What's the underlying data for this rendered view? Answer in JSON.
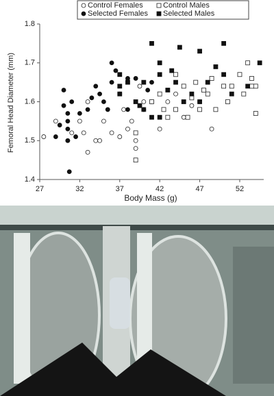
{
  "chart_data": {
    "type": "scatter",
    "xlabel": "Body Mass (g)",
    "ylabel": "Femoral Head Diameter (mm)",
    "xlim": [
      27,
      55
    ],
    "xticks": [
      27,
      32,
      37,
      42,
      47,
      52
    ],
    "ylim": [
      1.4,
      1.8
    ],
    "yticks": [
      1.4,
      1.5,
      1.6,
      1.7,
      1.8
    ],
    "series": [
      {
        "name": "Control Females",
        "marker": "circle",
        "filled": false,
        "color": "#222",
        "x": [
          27.5,
          29,
          30.5,
          31,
          32,
          32.5,
          33,
          34,
          34.5,
          35,
          36,
          37,
          37.5,
          38,
          38.5,
          39,
          39,
          39.5,
          40,
          41,
          42,
          43,
          44,
          45,
          46,
          47,
          48.5,
          35.5,
          33
        ],
        "y": [
          1.51,
          1.55,
          1.5,
          1.52,
          1.55,
          1.52,
          1.47,
          1.5,
          1.5,
          1.55,
          1.52,
          1.51,
          1.58,
          1.53,
          1.55,
          1.5,
          1.48,
          1.64,
          1.6,
          1.6,
          1.53,
          1.6,
          1.62,
          1.56,
          1.59,
          1.6,
          1.53,
          1.58,
          1.6
        ]
      },
      {
        "name": "Control Males",
        "marker": "square",
        "filled": false,
        "color": "#222",
        "x": [
          39,
          39,
          40,
          41,
          42,
          42.5,
          43,
          44,
          44,
          45,
          45.5,
          46,
          46.5,
          47,
          47.5,
          48,
          48.5,
          49,
          50,
          50.5,
          51,
          52,
          52.5,
          53,
          53.5,
          53.5,
          54,
          54
        ],
        "y": [
          1.45,
          1.52,
          1.58,
          1.6,
          1.62,
          1.58,
          1.56,
          1.58,
          1.67,
          1.64,
          1.56,
          1.61,
          1.65,
          1.58,
          1.63,
          1.62,
          1.66,
          1.58,
          1.64,
          1.6,
          1.64,
          1.67,
          1.62,
          1.7,
          1.66,
          1.64,
          1.57,
          1.64
        ]
      },
      {
        "name": "Selected Females",
        "marker": "circle",
        "filled": true,
        "color": "#111",
        "x": [
          29,
          30,
          30.5,
          30.5,
          30.5,
          30.5,
          30.7,
          31,
          31.5,
          32,
          33,
          33.5,
          34,
          34.5,
          35,
          35.5,
          36,
          36,
          36.5,
          37,
          38,
          38,
          39,
          40,
          40.5,
          41,
          29.5,
          30
        ],
        "y": [
          1.51,
          1.59,
          1.57,
          1.55,
          1.53,
          1.5,
          1.42,
          1.6,
          1.51,
          1.57,
          1.58,
          1.61,
          1.64,
          1.62,
          1.6,
          1.58,
          1.7,
          1.65,
          1.68,
          1.62,
          1.66,
          1.58,
          1.66,
          1.58,
          1.63,
          1.65,
          1.54,
          1.63
        ]
      },
      {
        "name": "Selected Males",
        "marker": "square",
        "filled": true,
        "color": "#111",
        "x": [
          37,
          37,
          38,
          39,
          40,
          41,
          41,
          42,
          42,
          42,
          43,
          43.5,
          44,
          44.5,
          45,
          46,
          47,
          47,
          48,
          49,
          50,
          50,
          51,
          53,
          54.5,
          37,
          39.5
        ],
        "y": [
          1.67,
          1.64,
          1.65,
          1.6,
          1.65,
          1.75,
          1.56,
          1.56,
          1.7,
          1.67,
          1.63,
          1.68,
          1.65,
          1.74,
          1.6,
          1.62,
          1.73,
          1.6,
          1.65,
          1.69,
          1.75,
          1.67,
          1.62,
          1.64,
          1.7,
          1.62,
          1.59
        ]
      }
    ]
  }
}
